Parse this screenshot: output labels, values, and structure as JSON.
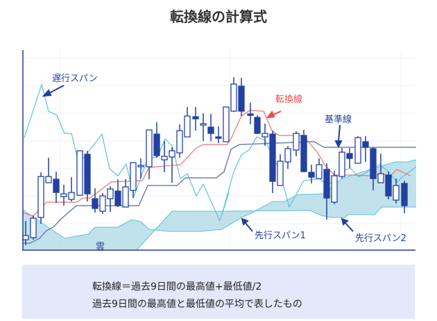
{
  "title": "転換線の計算式",
  "labels": {
    "chikou": "遅行スパン",
    "tenkan": "転換線",
    "kijun": "基準線",
    "senkou1": "先行スパン1",
    "senkou2": "先行スパン2",
    "cloud": "雲"
  },
  "note": {
    "line1": "転換線＝過去9日間の最高値+最低値/2",
    "line2": "過去9日間の最高値と最低値の平均で表したもの"
  },
  "colors": {
    "candle": "#2341a0",
    "tenkan": "#f07070",
    "kijun": "#7080b8",
    "chikou": "#5bc0de",
    "cloud": "#9fd3e0",
    "label": "#233f9c"
  }
}
